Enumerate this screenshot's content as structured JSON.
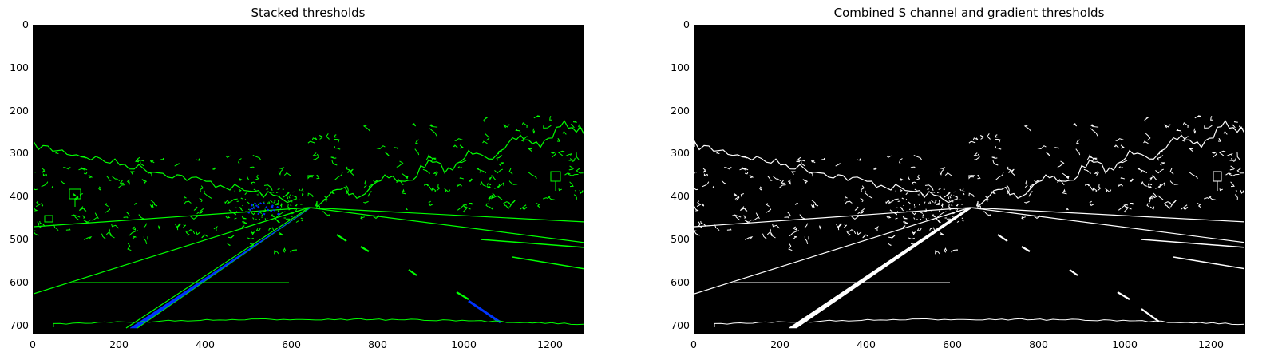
{
  "panels": [
    {
      "title": "Stacked thresholds",
      "edge_color": "#00ff00",
      "fill_color": "#0033ff",
      "y_ticks": [
        "0",
        "100",
        "200",
        "300",
        "400",
        "500",
        "600",
        "700"
      ],
      "x_ticks": [
        "0",
        "200",
        "400",
        "600",
        "800",
        "1000",
        "1200"
      ]
    },
    {
      "title": "Combined S channel and gradient thresholds",
      "edge_color": "#ffffff",
      "fill_color": "#ffffff",
      "y_ticks": [
        "0",
        "100",
        "200",
        "300",
        "400",
        "500",
        "600",
        "700"
      ],
      "x_ticks": [
        "0",
        "200",
        "400",
        "600",
        "800",
        "1000",
        "1200"
      ]
    }
  ]
}
